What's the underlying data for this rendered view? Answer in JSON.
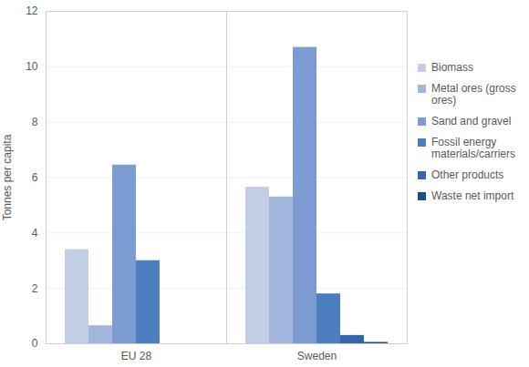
{
  "chart_data": {
    "type": "bar",
    "categories": [
      "EU 28",
      "Sweden"
    ],
    "ylabel": "Tonnes per capita",
    "ylim": [
      0,
      12
    ],
    "yticks": [
      0,
      2,
      4,
      6,
      8,
      10,
      12
    ],
    "grid": true,
    "legend": "right",
    "series": [
      {
        "name": "Biomass",
        "color": "#c3cde6",
        "values": [
          3.4,
          5.65
        ]
      },
      {
        "name": "Metal ores (gross ores)",
        "color": "#a5b6dc",
        "values": [
          0.65,
          5.3
        ]
      },
      {
        "name": "Sand and gravel",
        "color": "#7b9bd1",
        "values": [
          6.45,
          10.7
        ]
      },
      {
        "name": "Fossil energy materials/carriers",
        "color": "#4d7ebf",
        "values": [
          3.0,
          1.8
        ]
      },
      {
        "name": "Other products",
        "color": "#3466a8",
        "values": [
          0,
          0.3
        ]
      },
      {
        "name": "Waste net import",
        "color": "#1f4e87",
        "values": [
          0,
          0.05
        ]
      }
    ]
  }
}
